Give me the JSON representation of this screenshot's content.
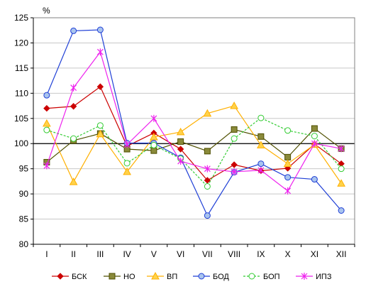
{
  "chart_data": {
    "type": "line",
    "ylabel": "%",
    "ylim": [
      80,
      125
    ],
    "ystep": 5,
    "reference_line": 100,
    "grid": "horizontal",
    "legend_position": "bottom",
    "categories": [
      "I",
      "II",
      "III",
      "IV",
      "V",
      "VI",
      "VII",
      "VIII",
      "IX",
      "X",
      "XI",
      "XII"
    ],
    "series": [
      {
        "name": "БСК",
        "color": "#cc0000",
        "marker": "diamond",
        "dash": false,
        "values": [
          107.0,
          107.4,
          111.3,
          99.5,
          102.1,
          98.9,
          92.7,
          95.8,
          94.6,
          95.1,
          99.9,
          96.0
        ]
      },
      {
        "name": "НО",
        "color": "#4f4f00",
        "marker": "square",
        "dash": false,
        "values": [
          96.3,
          100.6,
          102.0,
          98.9,
          98.6,
          100.4,
          98.5,
          102.8,
          101.4,
          97.3,
          103.0,
          99.0
        ]
      },
      {
        "name": "ВП",
        "color": "#ffb000",
        "marker": "triangle",
        "dash": false,
        "values": [
          104.0,
          92.4,
          101.9,
          94.4,
          101.3,
          102.3,
          106.0,
          107.5,
          99.7,
          96.0,
          99.8,
          92.1
        ]
      },
      {
        "name": "БОД",
        "color": "#1f3fd6",
        "marker": "circle",
        "dash": false,
        "values": [
          109.6,
          122.4,
          122.6,
          100.1,
          100.1,
          97.2,
          85.7,
          94.3,
          96.0,
          93.3,
          92.9,
          86.7
        ]
      },
      {
        "name": "БОП",
        "color": "#33cc33",
        "marker": "circle-open",
        "dash": true,
        "values": [
          102.7,
          101.0,
          103.6,
          96.1,
          99.7,
          97.0,
          91.5,
          101.0,
          105.1,
          102.6,
          101.5,
          95.0
        ]
      },
      {
        "name": "ИПЗ",
        "color": "#ee22ee",
        "marker": "star",
        "dash": false,
        "values": [
          95.6,
          111.1,
          118.2,
          99.8,
          105.0,
          96.5,
          95.0,
          94.4,
          94.7,
          90.6,
          100.0,
          99.0
        ]
      }
    ]
  }
}
